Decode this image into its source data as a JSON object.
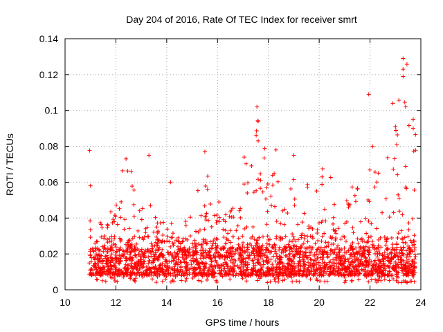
{
  "chart_data": {
    "type": "scatter",
    "title": "Day 204 of 2016, Rate Of TEC Index for receiver smrt",
    "xlabel": "GPS time / hours",
    "ylabel": "ROTI / TECUs",
    "xlim": [
      10,
      24
    ],
    "ylim": [
      0,
      0.14
    ],
    "xticks": [
      10,
      12,
      14,
      16,
      18,
      20,
      22,
      24
    ],
    "yticks": [
      0,
      0.02,
      0.04,
      0.06,
      0.08,
      0.1,
      0.12,
      0.14
    ],
    "xtick_labels": [
      "10",
      "12",
      "14",
      "16",
      "18",
      "20",
      "22",
      "24"
    ],
    "ytick_labels": [
      "0",
      "0.02",
      "0.04",
      "0.06",
      "0.08",
      "0.1",
      "0.12",
      "0.14"
    ],
    "grid": true,
    "marker": "+",
    "marker_color": "#ff0000",
    "series": [
      {
        "name": "ROTI",
        "x_range": [
          10.95,
          23.8
        ],
        "typical_values": [
          0.004,
          0.03
        ],
        "envelope_hours": [
          11.0,
          11.5,
          12.0,
          12.3,
          12.5,
          13.0,
          13.3,
          13.5,
          14.0,
          14.5,
          15.0,
          15.5,
          16.0,
          16.5,
          17.0,
          17.5,
          18.0,
          18.5,
          19.0,
          19.5,
          20.0,
          20.5,
          21.0,
          21.5,
          22.0,
          22.5,
          23.0,
          23.5,
          23.8
        ],
        "envelope_max": [
          0.045,
          0.04,
          0.048,
          0.072,
          0.066,
          0.045,
          0.075,
          0.043,
          0.04,
          0.035,
          0.042,
          0.078,
          0.055,
          0.044,
          0.075,
          0.102,
          0.07,
          0.062,
          0.075,
          0.06,
          0.07,
          0.072,
          0.06,
          0.058,
          0.08,
          0.07,
          0.105,
          0.129,
          0.095
        ],
        "outliers": [
          {
            "x": 11.0,
            "y": 0.058
          },
          {
            "x": 12.4,
            "y": 0.073
          },
          {
            "x": 12.6,
            "y": 0.066
          },
          {
            "x": 13.3,
            "y": 0.075
          },
          {
            "x": 14.15,
            "y": 0.06
          },
          {
            "x": 15.5,
            "y": 0.077
          },
          {
            "x": 17.05,
            "y": 0.074
          },
          {
            "x": 17.55,
            "y": 0.102
          },
          {
            "x": 17.6,
            "y": 0.094
          },
          {
            "x": 17.6,
            "y": 0.083
          },
          {
            "x": 18.3,
            "y": 0.078
          },
          {
            "x": 19.0,
            "y": 0.075
          },
          {
            "x": 21.95,
            "y": 0.109
          },
          {
            "x": 22.1,
            "y": 0.08
          },
          {
            "x": 22.9,
            "y": 0.104
          },
          {
            "x": 23.0,
            "y": 0.091
          },
          {
            "x": 23.05,
            "y": 0.081
          },
          {
            "x": 23.3,
            "y": 0.129
          },
          {
            "x": 23.3,
            "y": 0.123
          },
          {
            "x": 23.3,
            "y": 0.119
          },
          {
            "x": 23.4,
            "y": 0.102
          },
          {
            "x": 23.7,
            "y": 0.095
          },
          {
            "x": 23.7,
            "y": 0.09
          }
        ]
      }
    ]
  }
}
